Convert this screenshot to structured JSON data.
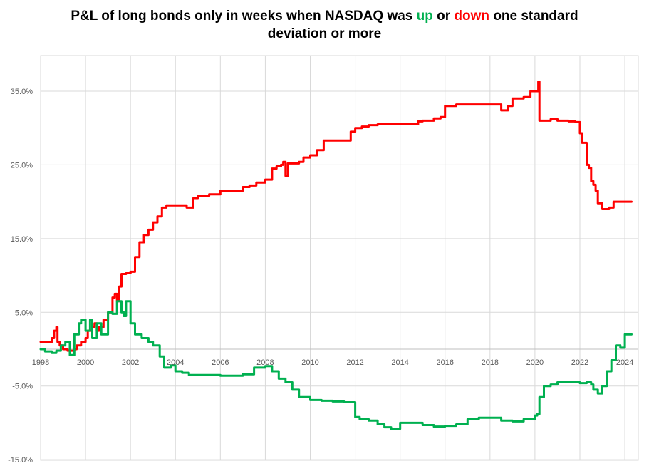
{
  "chart_data": {
    "type": "line",
    "title_parts": {
      "prefix": "P&L of long bonds only in weeks when NASDAQ was",
      "up_word": "up",
      "or_word": "or",
      "down_word": "down",
      "line1_suffix": "one standard",
      "line2": "deviation or more"
    },
    "xlim": [
      1998,
      2024.6
    ],
    "ylim": [
      -15,
      40
    ],
    "x_ticks": [
      1998,
      2000,
      2002,
      2004,
      2006,
      2008,
      2010,
      2012,
      2014,
      2016,
      2018,
      2020,
      2022,
      2024
    ],
    "x_tick_labels": [
      "1998",
      "2000",
      "2002",
      "2004",
      "2006",
      "2008",
      "2010",
      "2012",
      "2014",
      "2016",
      "2018",
      "2020",
      "2022",
      "2024"
    ],
    "y_ticks": [
      35,
      25,
      15,
      5,
      -5,
      -15
    ],
    "y_tick_labels": [
      "35.0%",
      "25.0%",
      "15.0%",
      "5.0%",
      "-5.0%",
      "-15.0%"
    ],
    "grid": true,
    "legend": "none",
    "series": [
      {
        "color": "#ff0000",
        "x": [
          1998.0,
          1998.1,
          1998.5,
          1998.6,
          1998.7,
          1998.75,
          1998.85,
          1999.0,
          1999.2,
          1999.5,
          1999.6,
          1999.8,
          2000.0,
          2000.1,
          2000.3,
          2000.4,
          2000.5,
          2000.6,
          2000.8,
          2001.0,
          2001.2,
          2001.3,
          2001.4,
          2001.5,
          2001.6,
          2001.8,
          2002.0,
          2002.2,
          2002.4,
          2002.6,
          2002.8,
          2003.0,
          2003.2,
          2003.4,
          2003.6,
          2003.8,
          2004.0,
          2004.5,
          2004.8,
          2005.0,
          2005.5,
          2006.0,
          2006.5,
          2007.0,
          2007.3,
          2007.6,
          2008.0,
          2008.3,
          2008.5,
          2008.7,
          2008.8,
          2008.9,
          2009.0,
          2009.5,
          2009.7,
          2010.0,
          2010.3,
          2010.6,
          2011.0,
          2011.5,
          2011.8,
          2012.0,
          2012.3,
          2012.6,
          2013.0,
          2013.5,
          2014.0,
          2014.5,
          2014.8,
          2015.0,
          2015.5,
          2015.8,
          2016.0,
          2016.5,
          2017.0,
          2017.5,
          2018.0,
          2018.5,
          2018.8,
          2019.0,
          2019.5,
          2019.8,
          2020.0,
          2020.15,
          2020.2,
          2020.3,
          2020.7,
          2021.0,
          2021.5,
          2021.8,
          2022.0,
          2022.1,
          2022.3,
          2022.4,
          2022.5,
          2022.6,
          2022.7,
          2022.8,
          2023.0,
          2023.3,
          2023.5,
          2024.0,
          2024.3
        ],
        "values": [
          1.0,
          1.0,
          1.5,
          2.5,
          3.0,
          1.0,
          0.5,
          0.0,
          -0.2,
          0.0,
          0.5,
          1.0,
          1.5,
          2.5,
          3.0,
          3.5,
          2.5,
          3.0,
          4.0,
          5.0,
          7.0,
          7.5,
          6.5,
          8.5,
          10.2,
          10.3,
          10.5,
          12.5,
          14.5,
          15.5,
          16.2,
          17.2,
          18.0,
          19.2,
          19.5,
          19.5,
          19.5,
          19.2,
          20.5,
          20.8,
          21.0,
          21.5,
          21.5,
          22.0,
          22.2,
          22.6,
          23.0,
          24.5,
          24.8,
          25.0,
          25.4,
          23.5,
          25.2,
          25.4,
          26.0,
          26.3,
          27.0,
          28.3,
          28.3,
          28.3,
          29.5,
          30.0,
          30.2,
          30.4,
          30.5,
          30.5,
          30.5,
          30.5,
          30.9,
          31.0,
          31.3,
          31.5,
          33.0,
          33.2,
          33.2,
          33.2,
          33.2,
          32.4,
          33.0,
          34.0,
          34.2,
          35.0,
          35.0,
          36.3,
          31.0,
          31.0,
          31.2,
          31.0,
          30.9,
          30.8,
          29.3,
          28.0,
          25.0,
          24.6,
          22.8,
          22.3,
          21.5,
          19.8,
          19.0,
          19.2,
          20.0,
          20.0,
          20.0
        ]
      },
      {
        "color": "#00b050",
        "x": [
          1998.0,
          1998.2,
          1998.5,
          1998.7,
          1998.9,
          1999.1,
          1999.3,
          1999.5,
          1999.7,
          1999.8,
          2000.0,
          2000.2,
          2000.3,
          2000.5,
          2000.7,
          2001.0,
          2001.2,
          2001.4,
          2001.6,
          2001.7,
          2001.8,
          2002.0,
          2002.2,
          2002.5,
          2002.8,
          2003.0,
          2003.3,
          2003.5,
          2003.8,
          2004.0,
          2004.3,
          2004.6,
          2005.0,
          2005.5,
          2006.0,
          2006.5,
          2007.0,
          2007.5,
          2008.0,
          2008.3,
          2008.6,
          2008.9,
          2009.2,
          2009.5,
          2010.0,
          2010.5,
          2011.0,
          2011.5,
          2012.0,
          2012.2,
          2012.6,
          2013.0,
          2013.3,
          2013.6,
          2014.0,
          2014.5,
          2015.0,
          2015.5,
          2016.0,
          2016.5,
          2017.0,
          2017.5,
          2018.0,
          2018.5,
          2019.0,
          2019.5,
          2020.0,
          2020.1,
          2020.2,
          2020.4,
          2020.7,
          2021.0,
          2021.5,
          2022.0,
          2022.3,
          2022.5,
          2022.6,
          2022.8,
          2023.0,
          2023.2,
          2023.4,
          2023.6,
          2023.8,
          2024.0,
          2024.3
        ],
        "values": [
          0.0,
          -0.3,
          -0.5,
          -0.2,
          0.5,
          1.0,
          -0.8,
          2.0,
          3.5,
          4.0,
          2.5,
          4.0,
          1.5,
          3.5,
          2.0,
          5.0,
          4.8,
          6.5,
          5.0,
          4.5,
          6.5,
          3.5,
          2.0,
          1.5,
          1.0,
          0.5,
          -1.0,
          -2.5,
          -2.2,
          -3.0,
          -3.2,
          -3.5,
          -3.5,
          -3.5,
          -3.6,
          -3.6,
          -3.4,
          -2.5,
          -2.3,
          -3.0,
          -4.0,
          -4.5,
          -5.5,
          -6.5,
          -6.9,
          -7.0,
          -7.1,
          -7.2,
          -9.2,
          -9.5,
          -9.7,
          -10.2,
          -10.6,
          -10.8,
          -10.0,
          -10.0,
          -10.3,
          -10.5,
          -10.4,
          -10.2,
          -9.5,
          -9.3,
          -9.3,
          -9.7,
          -9.8,
          -9.5,
          -9.0,
          -8.8,
          -6.5,
          -5.0,
          -4.8,
          -4.5,
          -4.5,
          -4.6,
          -4.5,
          -4.8,
          -5.5,
          -6.0,
          -5.0,
          -3.0,
          -1.5,
          0.5,
          0.2,
          2.0,
          2.0
        ]
      }
    ]
  }
}
